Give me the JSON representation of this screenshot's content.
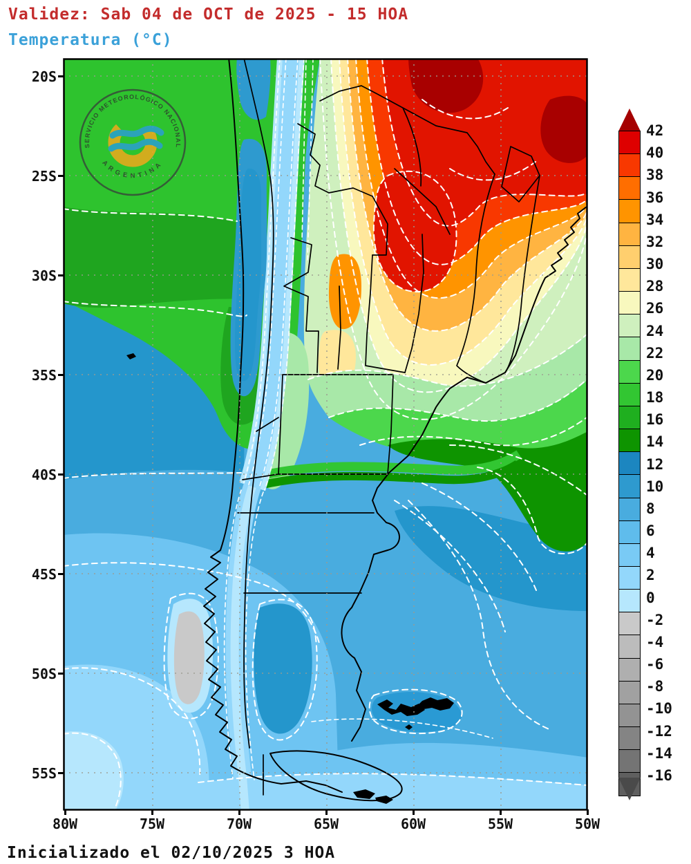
{
  "header": {
    "validity_label": "Validez: Sab 04 de OCT de 2025 - 15 HOA",
    "variable_label": "Temperatura (°C)",
    "validity_color": "#c32c2c",
    "variable_color": "#3ba1d9"
  },
  "footer": {
    "init_label": "Inicializado el 02/10/2025 3 HOA"
  },
  "map": {
    "lat_labels": [
      "20S",
      "25S",
      "30S",
      "35S",
      "40S",
      "45S",
      "50S",
      "55S"
    ],
    "lon_labels": [
      "80W",
      "75W",
      "70W",
      "65W",
      "60W",
      "55W",
      "50W"
    ],
    "logo": {
      "top_text": "SERVICIO METEOROLÓGICO NACIONAL",
      "bottom_text": "ARGENTINA"
    }
  },
  "colorbar": {
    "unit": "°C",
    "levels": [
      "42",
      "40",
      "38",
      "36",
      "34",
      "32",
      "30",
      "28",
      "26",
      "24",
      "22",
      "20",
      "18",
      "16",
      "14",
      "12",
      "10",
      "8",
      "6",
      "4",
      "2",
      "0",
      "-2",
      "-4",
      "-6",
      "-8",
      "-10",
      "-12",
      "-14",
      "-16"
    ],
    "cell_colors": [
      "#de0000",
      "#f83800",
      "#ff6e00",
      "#ff9400",
      "#ffb441",
      "#ffcf6e",
      "#ffe79b",
      "#f8f8be",
      "#cff0be",
      "#a8e8a8",
      "#4cd74c",
      "#32c632",
      "#1faf1f",
      "#0e9400",
      "#1c86c0",
      "#2e9acf",
      "#49acdf",
      "#5fbcec",
      "#79caf5",
      "#93d7fb",
      "#b6e7fd",
      "#c9c9c9",
      "#bcbcbc",
      "#afafaf",
      "#a1a1a1",
      "#939393",
      "#848484",
      "#747474",
      "#5f5f5f"
    ],
    "arrow_top_color": "#a50000",
    "arrow_bottom_color": "#4a4a4a"
  }
}
